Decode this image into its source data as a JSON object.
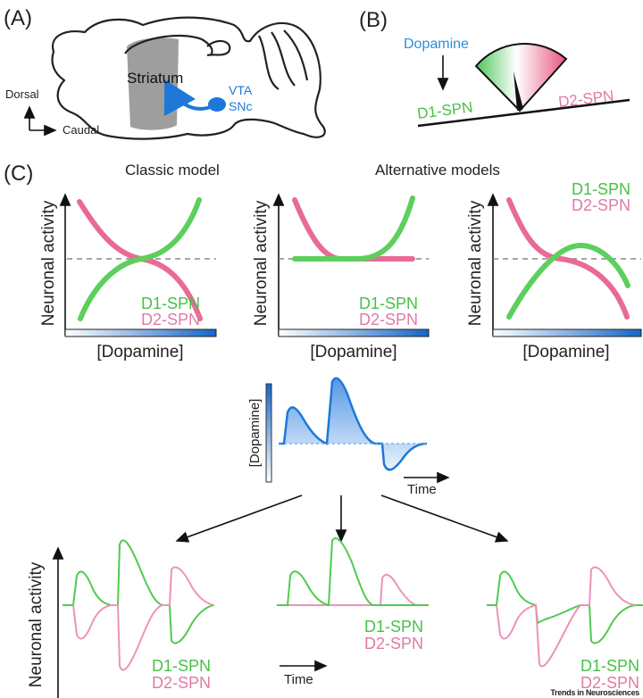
{
  "panels": {
    "a": "(A)",
    "b": "(B)",
    "c": "(C)"
  },
  "panel_a": {
    "striatum": "Striatum",
    "vta": "VTA",
    "snc": "SNc",
    "dorsal": "Dorsal",
    "caudal": "Caudal"
  },
  "panel_b": {
    "dopamine": "Dopamine",
    "d1": "D1-SPN",
    "d2": "D2-SPN"
  },
  "panel_c": {
    "classic_title": "Classic model",
    "alt_title": "Alternative models",
    "ylabel": "Neuronal activity",
    "xlabel": "[Dopamine]",
    "d1": "D1-SPN",
    "d2": "D2-SPN",
    "time": "Time"
  },
  "colors": {
    "d1": "#5ccf5c",
    "d2": "#e86a97",
    "dopamine": "#1e78d8"
  },
  "credit": "Trends in Neurosciences"
}
